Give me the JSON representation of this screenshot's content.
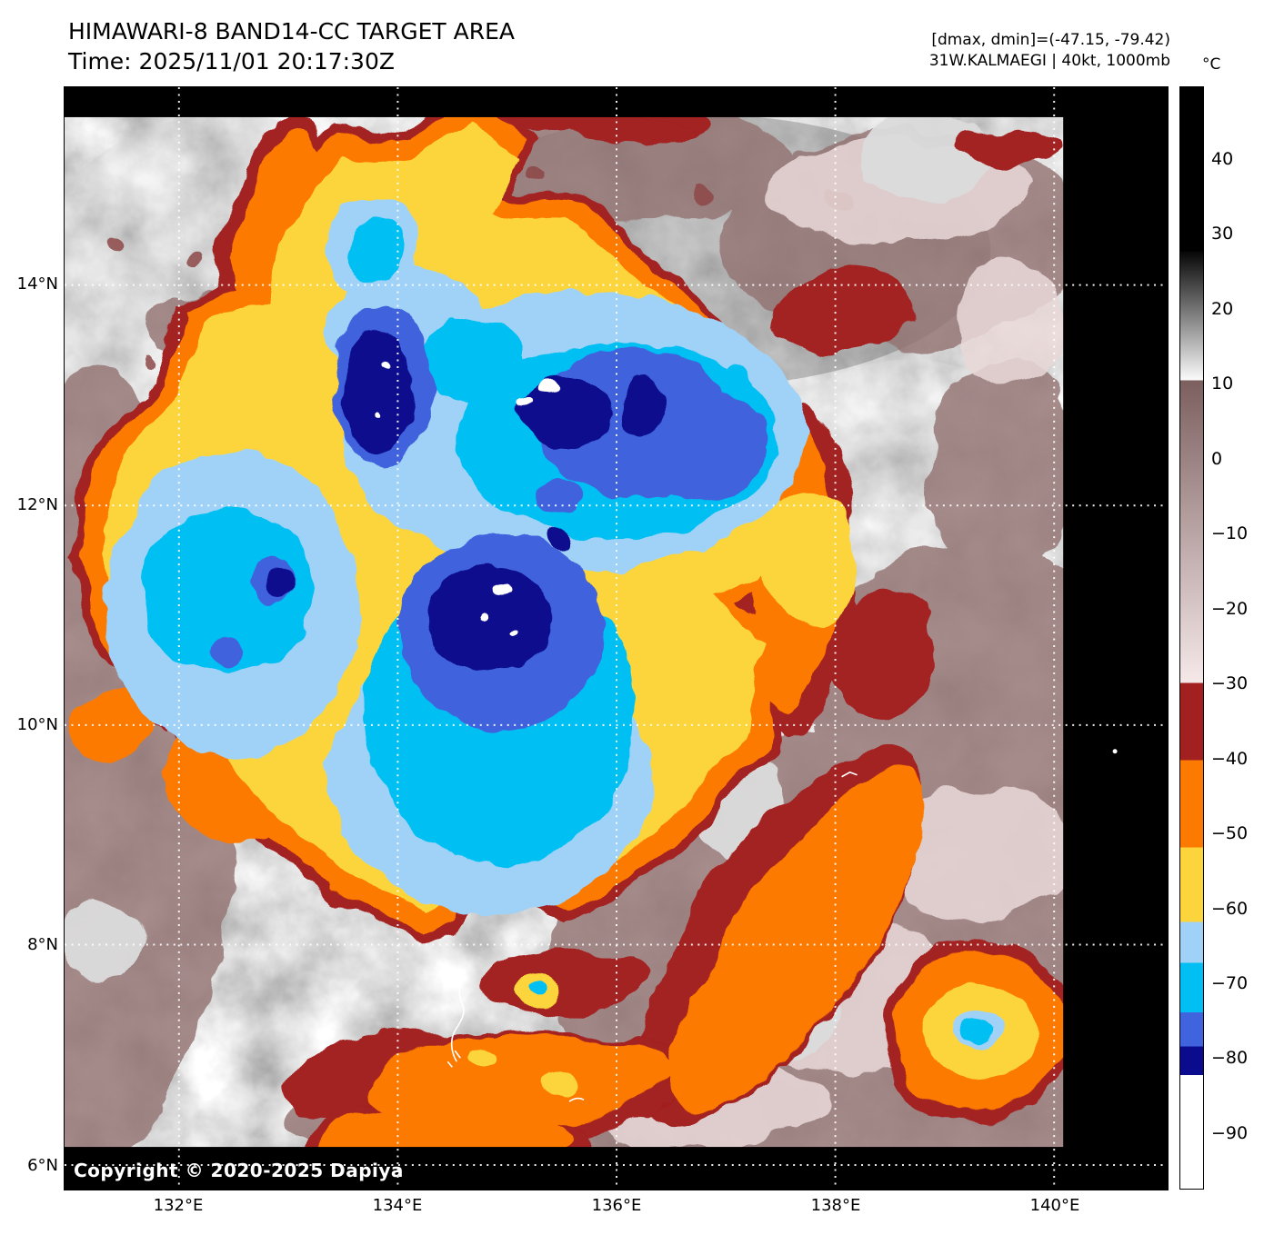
{
  "header": {
    "title": "HIMAWARI-8 BAND14-CC TARGET AREA",
    "time": "Time: 2025/11/01 20:17:30Z",
    "dmax_dmin": "[dmax, dmin]=(-47.15, -79.42)",
    "storm": "31W.KALMAEGI | 40kt, 1000mb"
  },
  "colorbar": {
    "unit": "°C",
    "ticks": [
      "40",
      "30",
      "20",
      "10",
      "0",
      "−10",
      "−20",
      "−30",
      "−40",
      "−50",
      "−60",
      "−70",
      "−80",
      "−90"
    ],
    "segments": [
      {
        "from": 0,
        "to": 14.9,
        "color": "#000000"
      },
      {
        "from": 14.9,
        "to": 26.6,
        "colorStart": "#060606",
        "colorEnd": "#fbfbfb"
      },
      {
        "from": 26.6,
        "to": 54.1,
        "colorStart": "#7c5f5f",
        "colorEnd": "#f6e9e9"
      },
      {
        "from": 54.1,
        "to": 61.1,
        "color": "#a32020"
      },
      {
        "from": 61.1,
        "to": 69.0,
        "color": "#fc7a02"
      },
      {
        "from": 69.0,
        "to": 75.8,
        "color": "#fcd53c"
      },
      {
        "from": 75.8,
        "to": 79.5,
        "color": "#a0d2f8"
      },
      {
        "from": 79.5,
        "to": 84.0,
        "color": "#01bff2"
      },
      {
        "from": 84.0,
        "to": 87.1,
        "color": "#4064dd"
      },
      {
        "from": 87.1,
        "to": 89.7,
        "color": "#0a0c8d"
      },
      {
        "from": 89.7,
        "to": 100,
        "color": "#ffffff"
      }
    ]
  },
  "axes": {
    "lat_labels": [
      "14°N",
      "12°N",
      "10°N",
      "8°N",
      "6°N"
    ],
    "lon_labels": [
      "132°E",
      "134°E",
      "136°E",
      "138°E",
      "140°E"
    ]
  },
  "map": {
    "copyright": "Copyright © 2020-2025 Dapiya"
  }
}
